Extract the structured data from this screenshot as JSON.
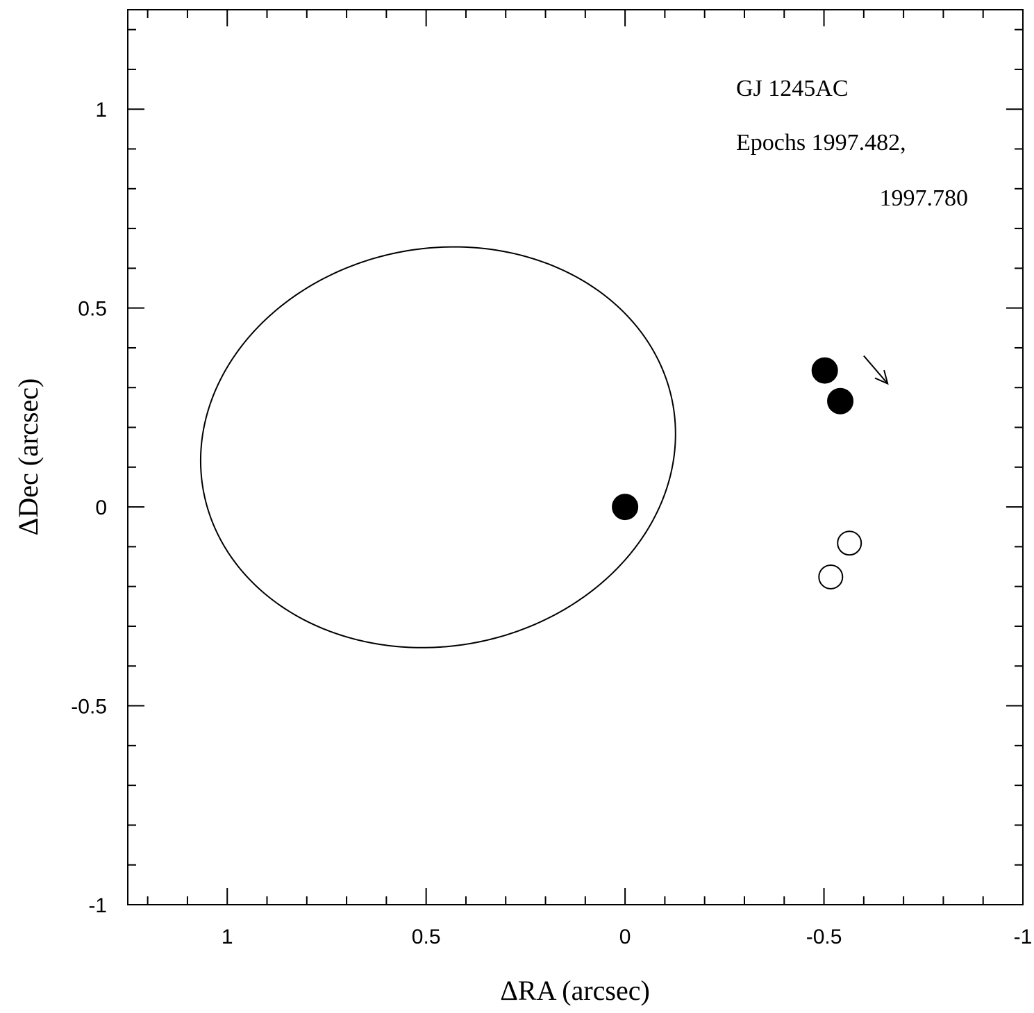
{
  "chart_data": {
    "type": "scatter",
    "title": "",
    "xlabel": "ΔRA (arcsec)",
    "ylabel": "ΔDec (arcsec)",
    "xlim": [
      1.25,
      -1.0
    ],
    "ylim": [
      -1.0,
      1.25
    ],
    "x_ticks": [
      1,
      0.5,
      0,
      -0.5,
      -1
    ],
    "x_tick_labels": [
      "1",
      "0.5",
      "0",
      "-0.5",
      "-1"
    ],
    "y_ticks": [
      1,
      0.5,
      0,
      -0.5,
      -1
    ],
    "y_tick_labels": [
      "1",
      "0.5",
      "0",
      "-0.5",
      "-1"
    ],
    "minor_tick_step": 0.1,
    "grid": false,
    "annotations": [
      "GJ 1245AC",
      "Epochs 1997.482,",
      "1997.780"
    ],
    "orbit": {
      "center": [
        0.47,
        0.15
      ],
      "semi_major": 0.6,
      "semi_minor": 0.5,
      "rotation_deg": -10.7
    },
    "series": [
      {
        "marker": "filled-circle",
        "points": [
          [
            0.0,
            0.0
          ]
        ]
      },
      {
        "marker": "filled-circle",
        "points": [
          [
            -0.502,
            0.343
          ],
          [
            -0.541,
            0.266
          ]
        ]
      },
      {
        "marker": "open-circle",
        "points": [
          [
            -0.564,
            -0.091
          ],
          [
            -0.517,
            -0.176
          ]
        ]
      }
    ],
    "arrow": {
      "from": [
        -0.6,
        0.38
      ],
      "to": [
        -0.66,
        0.31
      ]
    },
    "colors": {
      "ink": "#000000",
      "background": "#ffffff"
    }
  }
}
